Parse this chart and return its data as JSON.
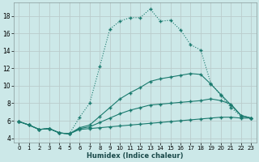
{
  "xlabel": "Humidex (Indice chaleur)",
  "background_color": "#cce8e8",
  "grid_color": "#bbcccc",
  "line_color": "#1a7a6e",
  "xlim": [
    -0.5,
    23.5
  ],
  "ylim": [
    3.5,
    19.5
  ],
  "xticks": [
    0,
    1,
    2,
    3,
    4,
    5,
    6,
    7,
    8,
    9,
    10,
    11,
    12,
    13,
    14,
    15,
    16,
    17,
    18,
    19,
    20,
    21,
    22,
    23
  ],
  "yticks": [
    4,
    6,
    8,
    10,
    12,
    14,
    16,
    18
  ],
  "series_dotted": {
    "x": [
      0,
      1,
      2,
      3,
      4,
      5,
      6,
      7,
      8,
      9,
      10,
      11,
      12,
      13,
      14,
      15,
      16,
      17,
      18,
      19,
      20,
      21,
      22,
      23
    ],
    "y": [
      5.9,
      5.5,
      5.0,
      5.1,
      4.6,
      4.5,
      6.4,
      8.0,
      12.2,
      16.5,
      17.4,
      17.8,
      17.8,
      18.8,
      17.4,
      17.5,
      16.4,
      14.7,
      14.1,
      10.3,
      8.9,
      7.5,
      6.5,
      6.3
    ]
  },
  "series_solid": [
    {
      "x": [
        0,
        1,
        2,
        3,
        4,
        5,
        6,
        7,
        8,
        9,
        10,
        11,
        12,
        13,
        14,
        15,
        16,
        17,
        18,
        19,
        20,
        21,
        22,
        23
      ],
      "y": [
        5.9,
        5.5,
        5.0,
        5.1,
        4.6,
        4.5,
        5.0,
        5.1,
        5.2,
        5.3,
        5.4,
        5.5,
        5.6,
        5.7,
        5.8,
        5.9,
        6.0,
        6.1,
        6.2,
        6.3,
        6.4,
        6.4,
        6.3,
        6.3
      ]
    },
    {
      "x": [
        0,
        1,
        2,
        3,
        4,
        5,
        6,
        7,
        8,
        9,
        10,
        11,
        12,
        13,
        14,
        15,
        16,
        17,
        18,
        19,
        20,
        21,
        22,
        23
      ],
      "y": [
        5.9,
        5.5,
        5.0,
        5.1,
        4.6,
        4.5,
        5.1,
        5.3,
        5.8,
        6.3,
        6.8,
        7.2,
        7.5,
        7.8,
        7.9,
        8.0,
        8.1,
        8.2,
        8.3,
        8.5,
        8.3,
        7.9,
        6.6,
        6.3
      ]
    },
    {
      "x": [
        0,
        1,
        2,
        3,
        4,
        5,
        6,
        7,
        8,
        9,
        10,
        11,
        12,
        13,
        14,
        15,
        16,
        17,
        18,
        19,
        20,
        21,
        22,
        23
      ],
      "y": [
        5.9,
        5.5,
        5.0,
        5.1,
        4.6,
        4.5,
        5.2,
        5.5,
        6.5,
        7.5,
        8.5,
        9.2,
        9.8,
        10.5,
        10.8,
        11.0,
        11.2,
        11.4,
        11.3,
        10.2,
        9.0,
        7.8,
        6.6,
        6.3
      ]
    }
  ]
}
